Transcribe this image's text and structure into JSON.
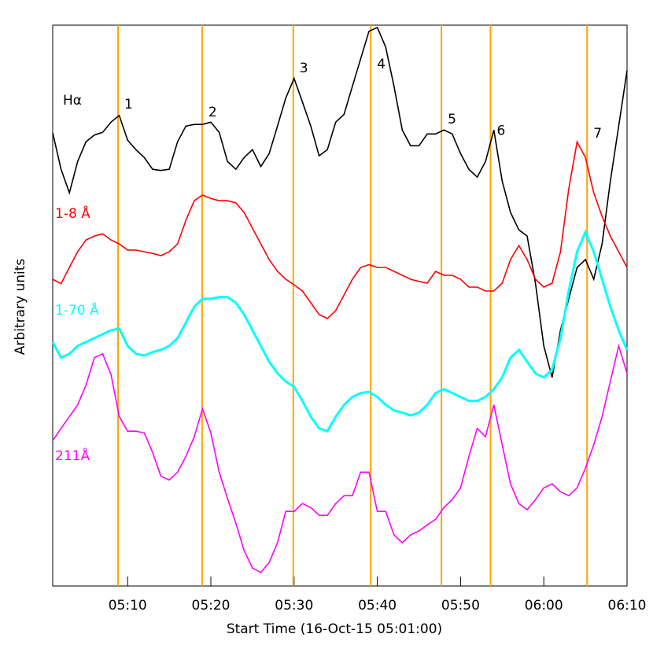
{
  "chart_data": {
    "type": "line",
    "xlabel": "Start Time (16-Oct-15 05:01:00)",
    "ylabel": "Arbitrary units",
    "xlim": [
      1,
      70
    ],
    "ylim": [
      0,
      100
    ],
    "xticks": [
      {
        "value": 10,
        "label": "05:10"
      },
      {
        "value": 20,
        "label": "05:20"
      },
      {
        "value": 30,
        "label": "05:30"
      },
      {
        "value": 40,
        "label": "05:40"
      },
      {
        "value": 50,
        "label": "05:50"
      },
      {
        "value": 60,
        "label": "06:00"
      },
      {
        "value": 70,
        "label": "06:10"
      }
    ],
    "x": [
      1,
      2,
      3,
      4,
      5,
      6,
      7,
      8,
      9,
      10,
      11,
      12,
      13,
      14,
      15,
      16,
      17,
      18,
      19,
      20,
      21,
      22,
      23,
      24,
      25,
      26,
      27,
      28,
      29,
      30,
      31,
      32,
      33,
      34,
      35,
      36,
      37,
      38,
      39,
      40,
      41,
      42,
      43,
      44,
      45,
      46,
      47,
      48,
      49,
      50,
      51,
      52,
      53,
      54,
      55,
      56,
      57,
      58,
      59,
      60,
      61,
      62,
      63,
      64,
      65,
      66,
      67,
      68,
      69,
      70
    ],
    "series": [
      {
        "name": "Hα",
        "color": "#000000",
        "values": [
          80.8,
          74.3,
          70.1,
          75.7,
          79.2,
          80.4,
          80.9,
          82.7,
          83.9,
          79.5,
          77.8,
          76.4,
          74.3,
          74.1,
          74.3,
          79.2,
          82.0,
          82.3,
          82.3,
          82.7,
          80.9,
          75.7,
          74.3,
          76.4,
          77.8,
          74.8,
          77.1,
          82.0,
          87.0,
          90.5,
          86.3,
          82.0,
          76.7,
          77.8,
          82.7,
          84.1,
          89.1,
          94.0,
          98.9,
          99.6,
          96.1,
          89.1,
          81.3,
          78.5,
          78.5,
          80.6,
          80.6,
          81.3,
          80.6,
          77.1,
          74.3,
          72.9,
          75.7,
          81.3,
          72.2,
          66.6,
          63.5,
          62.4,
          54.0,
          42.8,
          37.2,
          45.6,
          51.2,
          56.8,
          58.2,
          54.7,
          61.0,
          72.2,
          82.0,
          91.9
        ]
      },
      {
        "name": "1-8 Å",
        "color": "#ff0000",
        "values": [
          54.7,
          53.9,
          56.8,
          59.6,
          61.7,
          62.4,
          62.8,
          61.7,
          61.0,
          59.9,
          59.9,
          59.6,
          59.3,
          58.9,
          59.6,
          61.0,
          65.2,
          68.7,
          69.7,
          69.1,
          68.7,
          68.7,
          68.3,
          66.6,
          63.8,
          61.0,
          58.2,
          56.1,
          54.7,
          53.7,
          52.6,
          50.5,
          48.4,
          47.7,
          49.1,
          51.9,
          54.7,
          56.8,
          57.3,
          56.8,
          56.8,
          56.1,
          55.4,
          54.7,
          54.3,
          54.0,
          56.1,
          55.4,
          55.4,
          54.7,
          53.3,
          53.3,
          52.6,
          52.6,
          54.0,
          58.2,
          60.7,
          58.2,
          54.7,
          53.3,
          54.0,
          59.6,
          70.8,
          79.2,
          76.4,
          70.1,
          65.9,
          62.4,
          59.6,
          56.8
        ]
      },
      {
        "name": "1-70 Å",
        "color": "#00ffff",
        "values": [
          43.5,
          40.7,
          41.4,
          42.8,
          43.5,
          44.2,
          44.9,
          45.6,
          45.9,
          42.8,
          41.4,
          41.1,
          41.7,
          42.1,
          42.8,
          44.2,
          47.0,
          49.8,
          51.2,
          51.2,
          51.5,
          51.5,
          50.5,
          48.4,
          45.6,
          42.8,
          40.0,
          37.9,
          36.5,
          35.5,
          33.0,
          30.2,
          28.1,
          27.6,
          30.2,
          32.3,
          33.7,
          34.4,
          34.6,
          33.7,
          32.3,
          31.3,
          30.9,
          30.4,
          30.9,
          32.3,
          34.4,
          35.1,
          34.4,
          33.7,
          33.0,
          33.0,
          33.7,
          35.1,
          37.2,
          40.7,
          42.1,
          40.0,
          37.9,
          37.2,
          38.6,
          44.2,
          52.6,
          59.6,
          63.1,
          59.6,
          54.7,
          49.8,
          45.6,
          42.1
        ]
      },
      {
        "name": "211Å",
        "color": "#ff00ff",
        "values": [
          25.9,
          28.1,
          30.2,
          32.3,
          35.8,
          40.7,
          41.4,
          37.7,
          30.2,
          27.6,
          27.6,
          27.3,
          23.8,
          19.6,
          18.9,
          20.3,
          23.1,
          26.6,
          31.6,
          27.3,
          20.3,
          15.6,
          11.2,
          6.3,
          3.2,
          2.4,
          4.2,
          7.7,
          13.3,
          13.3,
          14.7,
          14.0,
          12.6,
          12.6,
          14.7,
          16.1,
          16.1,
          20.3,
          20.3,
          13.3,
          13.3,
          9.1,
          7.7,
          9.1,
          9.8,
          10.9,
          11.9,
          14.0,
          15.4,
          17.5,
          23.1,
          28.1,
          26.6,
          32.3,
          25.2,
          18.2,
          14.7,
          13.6,
          15.4,
          17.5,
          18.2,
          16.8,
          16.1,
          17.5,
          21.0,
          25.2,
          30.2,
          36.5,
          42.8,
          37.9
        ]
      }
    ],
    "events": {
      "color": "#ffa500",
      "x": [
        8.85,
        18.95,
        29.9,
        39.2,
        47.7,
        53.6,
        65.2
      ],
      "labels": [
        "1",
        "2",
        "3",
        "4",
        "5",
        "6",
        "7"
      ]
    }
  }
}
